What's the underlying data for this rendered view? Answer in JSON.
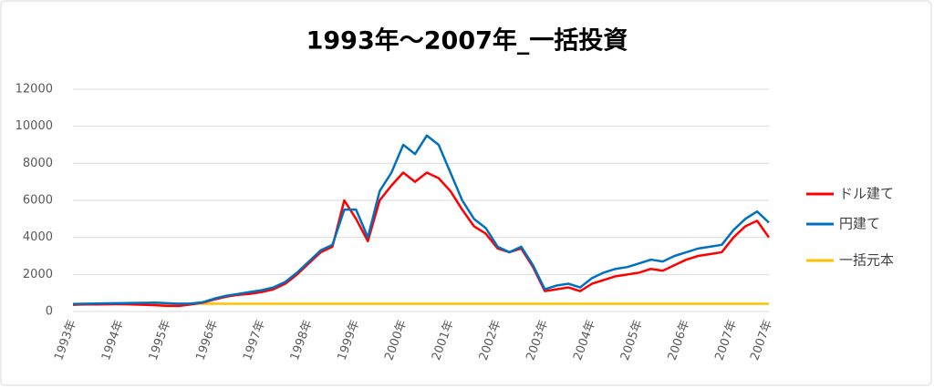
{
  "chart_data": {
    "type": "line",
    "title": "1993年～2007年_一括投資",
    "categories": [
      "1993年",
      null,
      null,
      null,
      "1994年",
      null,
      null,
      null,
      "1995年",
      null,
      null,
      null,
      "1996年",
      null,
      null,
      null,
      "1997年",
      null,
      null,
      null,
      "1998年",
      null,
      null,
      null,
      "1999年",
      null,
      null,
      null,
      "2000年",
      null,
      null,
      null,
      "2001年",
      null,
      null,
      null,
      "2002年",
      null,
      null,
      null,
      "2003年",
      null,
      null,
      null,
      "2004年",
      null,
      null,
      null,
      "2005年",
      null,
      null,
      null,
      "2006年",
      null,
      null,
      null,
      "2007年",
      null,
      null,
      "2007年"
    ],
    "series": [
      {
        "name": "ドル建て",
        "color": "#ff0000",
        "values": [
          360,
          380,
          380,
          390,
          400,
          380,
          360,
          340,
          300,
          300,
          380,
          480,
          650,
          800,
          900,
          950,
          1050,
          1200,
          1500,
          2000,
          2600,
          3200,
          3500,
          6000,
          5000,
          3800,
          6000,
          6800,
          7500,
          7000,
          7500,
          7200,
          6500,
          5500,
          4600,
          4200,
          3400,
          3200,
          3400,
          2400,
          1100,
          1200,
          1300,
          1100,
          1500,
          1700,
          1900,
          2000,
          2100,
          2300,
          2200,
          2500,
          2800,
          3000,
          3100,
          3200,
          4000,
          4600,
          4900,
          4000
        ]
      },
      {
        "name": "円建て",
        "color": "#0070c0",
        "values": [
          400,
          420,
          430,
          440,
          450,
          460,
          470,
          480,
          450,
          420,
          430,
          500,
          700,
          850,
          950,
          1050,
          1150,
          1300,
          1600,
          2100,
          2700,
          3300,
          3600,
          5500,
          5500,
          4000,
          6500,
          7500,
          9000,
          8500,
          9500,
          9000,
          7500,
          6000,
          5000,
          4500,
          3500,
          3200,
          3500,
          2500,
          1200,
          1400,
          1500,
          1300,
          1800,
          2100,
          2300,
          2400,
          2600,
          2800,
          2700,
          3000,
          3200,
          3400,
          3500,
          3600,
          4400,
          5000,
          5400,
          4800
        ]
      },
      {
        "name": "一括元本",
        "color": "#ffc000",
        "values": [
          420,
          420,
          420,
          420,
          420,
          420,
          420,
          420,
          420,
          420,
          420,
          420,
          420,
          420,
          420,
          420,
          420,
          420,
          420,
          420,
          420,
          420,
          420,
          420,
          420,
          420,
          420,
          420,
          420,
          420,
          420,
          420,
          420,
          420,
          420,
          420,
          420,
          420,
          420,
          420,
          420,
          420,
          420,
          420,
          420,
          420,
          420,
          420,
          420,
          420,
          420,
          420,
          420,
          420,
          420,
          420,
          420,
          420,
          420,
          420
        ]
      }
    ],
    "ylim": [
      0,
      12000
    ],
    "yticks": [
      0,
      2000,
      4000,
      6000,
      8000,
      10000,
      12000
    ],
    "grid": true,
    "legend": "right"
  }
}
